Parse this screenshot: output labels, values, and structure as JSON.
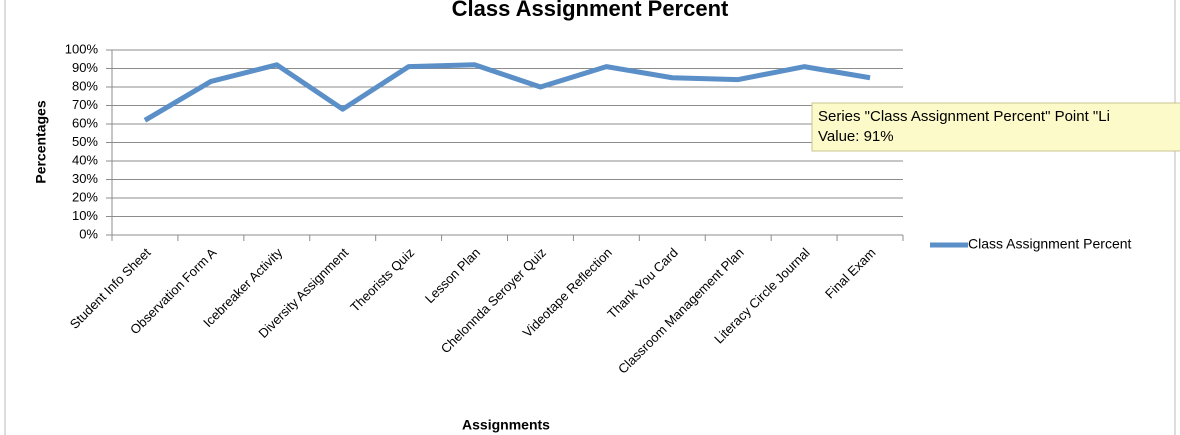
{
  "chart_data": {
    "type": "line",
    "title": "Class Assignment Percent",
    "x_label": "Assignments",
    "y_label": "Percentages",
    "categories": [
      "Student Info Sheet",
      "Observation Form A",
      "Icebreaker Activity",
      "Diversity Assignment",
      "Theorists Quiz",
      "Lesson Plan",
      "Chelonnda Seroyer Quiz",
      "Videotape Reflection",
      "Thank You Card",
      "Classroom Management Plan",
      "Literacy Circle Journal",
      "Final Exam"
    ],
    "series": [
      {
        "name": "Class Assignment Percent",
        "color": "#5b8fc7",
        "values": [
          62,
          83,
          92,
          68,
          91,
          92,
          80,
          91,
          85,
          84,
          91,
          85
        ]
      }
    ],
    "ylim": [
      0,
      100
    ],
    "yticks": [
      {
        "value": 0,
        "label": "0%"
      },
      {
        "value": 10,
        "label": "10%"
      },
      {
        "value": 20,
        "label": "20%"
      },
      {
        "value": 30,
        "label": "30%"
      },
      {
        "value": 40,
        "label": "40%"
      },
      {
        "value": 50,
        "label": "50%"
      },
      {
        "value": 60,
        "label": "60%"
      },
      {
        "value": 70,
        "label": "70%"
      },
      {
        "value": 80,
        "label": "80%"
      },
      {
        "value": 90,
        "label": "90%"
      },
      {
        "value": 100,
        "label": "100%"
      }
    ],
    "grid": true,
    "legend": "right"
  },
  "tooltip": {
    "line1": "Series \"Class Assignment Percent\" Point \"Li",
    "line2": "Value: 91%"
  }
}
